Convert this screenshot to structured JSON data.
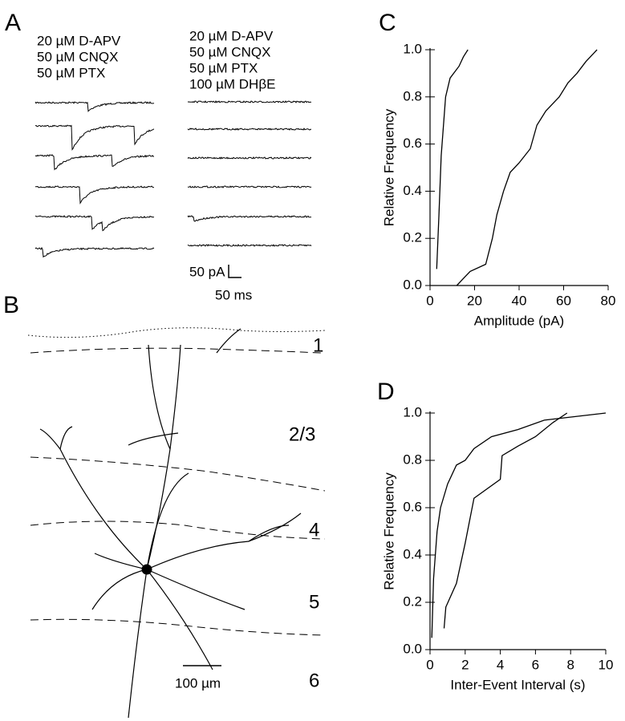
{
  "panel_a": {
    "label": "A",
    "conditions_left": [
      "20 µM D-APV",
      "50 µM CNQX",
      "50 µM PTX"
    ],
    "conditions_right": [
      "20 µM D-APV",
      "50 µM CNQX",
      "50 µM PTX",
      "100 µM DHβE"
    ],
    "scale_current": "50 pA",
    "scale_time": "50 ms"
  },
  "panel_b": {
    "label": "B",
    "layers": [
      "1",
      "2/3",
      "4",
      "5",
      "6"
    ],
    "scale": "100 µm"
  },
  "chart_data": [
    {
      "type": "line",
      "label": "C",
      "xlabel": "Amplitude (pA)",
      "ylabel": "Relative Frequency",
      "xlim": [
        0,
        80
      ],
      "ylim": [
        0,
        1
      ],
      "xticks": [
        0,
        20,
        40,
        60,
        80
      ],
      "yticks": [
        {
          "value": 0,
          "label": "0.0"
        },
        {
          "value": 0.2,
          "label": "0.2"
        },
        {
          "value": 0.4,
          "label": "0.4"
        },
        {
          "value": 0.6,
          "label": "0.6"
        },
        {
          "value": 0.8,
          "label": "0.8"
        },
        {
          "value": 1,
          "label": "1.0"
        }
      ],
      "series": [
        {
          "color": "#000000",
          "x": [
            3,
            4,
            5,
            7,
            9,
            13,
            15,
            17
          ],
          "values": [
            0.07,
            0.3,
            0.55,
            0.8,
            0.88,
            0.93,
            0.97,
            1.0
          ]
        },
        {
          "color": "#000000",
          "x": [
            12,
            15,
            18,
            25,
            28,
            30,
            33,
            36,
            40,
            45,
            48,
            52,
            58,
            62,
            66,
            70,
            74,
            75
          ],
          "values": [
            0,
            0.03,
            0.06,
            0.09,
            0.2,
            0.3,
            0.4,
            0.48,
            0.52,
            0.58,
            0.68,
            0.74,
            0.8,
            0.86,
            0.9,
            0.95,
            0.99,
            1.0
          ]
        }
      ]
    },
    {
      "type": "line",
      "label": "D",
      "xlabel": "Inter-Event Interval (s)",
      "ylabel": "Relative Frequency",
      "xlim": [
        0,
        10
      ],
      "ylim": [
        0,
        1
      ],
      "xticks": [
        0,
        2,
        4,
        6,
        8,
        10
      ],
      "yticks": [
        {
          "value": 0,
          "label": "0.0"
        },
        {
          "value": 0.2,
          "label": "0.2"
        },
        {
          "value": 0.4,
          "label": "0.4"
        },
        {
          "value": 0.6,
          "label": "0.6"
        },
        {
          "value": 0.8,
          "label": "0.8"
        },
        {
          "value": 1,
          "label": "1.0"
        }
      ],
      "series": [
        {
          "color": "#000000",
          "x": [
            0.1,
            0.2,
            0.4,
            0.6,
            1,
            1.5,
            2,
            2.5,
            3.5,
            5,
            6.5,
            10
          ],
          "values": [
            0.05,
            0.3,
            0.5,
            0.6,
            0.7,
            0.78,
            0.8,
            0.85,
            0.9,
            0.93,
            0.97,
            1.0
          ]
        },
        {
          "color": "#000000",
          "x": [
            0.8,
            0.9,
            1.5,
            2,
            2.5,
            4,
            4.1,
            5,
            6,
            7,
            7.8
          ],
          "values": [
            0.09,
            0.18,
            0.28,
            0.45,
            0.64,
            0.72,
            0.82,
            0.86,
            0.9,
            0.96,
            1.0
          ]
        }
      ]
    }
  ]
}
